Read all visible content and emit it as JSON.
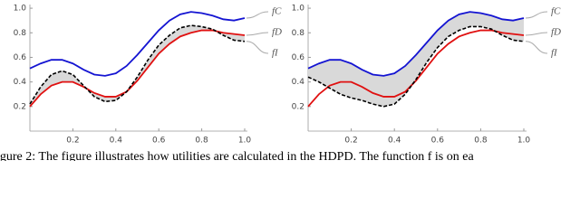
{
  "chart_data": [
    {
      "type": "line",
      "x": [
        0,
        0.05,
        0.1,
        0.15,
        0.2,
        0.25,
        0.3,
        0.35,
        0.4,
        0.45,
        0.5,
        0.55,
        0.6,
        0.65,
        0.7,
        0.75,
        0.8,
        0.85,
        0.9,
        0.95,
        1.0
      ],
      "series": [
        {
          "name": "fC",
          "color": "#1414d2",
          "values": [
            0.51,
            0.55,
            0.58,
            0.58,
            0.55,
            0.5,
            0.46,
            0.45,
            0.47,
            0.53,
            0.62,
            0.72,
            0.82,
            0.9,
            0.95,
            0.97,
            0.96,
            0.94,
            0.91,
            0.9,
            0.92
          ]
        },
        {
          "name": "fD",
          "color": "#e01010",
          "values": [
            0.2,
            0.3,
            0.37,
            0.4,
            0.4,
            0.36,
            0.31,
            0.28,
            0.28,
            0.32,
            0.41,
            0.52,
            0.63,
            0.71,
            0.77,
            0.8,
            0.82,
            0.82,
            0.8,
            0.79,
            0.78
          ]
        },
        {
          "name": "fI",
          "color": "#000000",
          "dashed": true,
          "values": [
            0.22,
            0.36,
            0.46,
            0.49,
            0.46,
            0.37,
            0.28,
            0.24,
            0.25,
            0.32,
            0.44,
            0.58,
            0.7,
            0.78,
            0.84,
            0.86,
            0.85,
            0.83,
            0.78,
            0.74,
            0.73
          ]
        }
      ],
      "fill_between": [
        2,
        1
      ],
      "fill_color": "#d9d9d9",
      "xlim": [
        0,
        1
      ],
      "ylim": [
        0,
        1.03
      ],
      "xticks": [
        0.2,
        0.4,
        0.6,
        0.8,
        {
          "value": 1,
          "label": "1.0"
        }
      ],
      "yticks": [
        0.2,
        0.4,
        0.6,
        0.8,
        {
          "value": 1,
          "label": "1.0"
        }
      ]
    },
    {
      "type": "line",
      "x": [
        0,
        0.05,
        0.1,
        0.15,
        0.2,
        0.25,
        0.3,
        0.35,
        0.4,
        0.45,
        0.5,
        0.55,
        0.6,
        0.65,
        0.7,
        0.75,
        0.8,
        0.85,
        0.9,
        0.95,
        1.0
      ],
      "series": [
        {
          "name": "fC",
          "color": "#1414d2",
          "values": [
            0.51,
            0.55,
            0.58,
            0.58,
            0.55,
            0.5,
            0.46,
            0.45,
            0.47,
            0.53,
            0.62,
            0.72,
            0.82,
            0.9,
            0.95,
            0.97,
            0.96,
            0.94,
            0.91,
            0.9,
            0.92
          ]
        },
        {
          "name": "fD",
          "color": "#e01010",
          "values": [
            0.2,
            0.3,
            0.37,
            0.4,
            0.4,
            0.36,
            0.31,
            0.28,
            0.28,
            0.32,
            0.41,
            0.52,
            0.63,
            0.71,
            0.77,
            0.8,
            0.82,
            0.82,
            0.8,
            0.79,
            0.78
          ]
        },
        {
          "name": "fI",
          "color": "#000000",
          "dashed": true,
          "values": [
            0.44,
            0.4,
            0.35,
            0.3,
            0.27,
            0.25,
            0.22,
            0.2,
            0.22,
            0.3,
            0.42,
            0.56,
            0.68,
            0.77,
            0.82,
            0.85,
            0.85,
            0.83,
            0.78,
            0.74,
            0.73
          ]
        }
      ],
      "fill_between": [
        0,
        2
      ],
      "fill_color": "#d9d9d9",
      "xlim": [
        0,
        1
      ],
      "ylim": [
        0,
        1.03
      ],
      "xticks": [
        0.2,
        0.4,
        0.6,
        0.8,
        {
          "value": 1,
          "label": "1.0"
        }
      ],
      "yticks": [
        0.2,
        0.4,
        0.6,
        0.8,
        {
          "value": 1,
          "label": "1.0"
        }
      ]
    }
  ],
  "caption": "igure 2: The figure illustrates how utilities are calculated in the HDPD. The function  f  is on ea"
}
